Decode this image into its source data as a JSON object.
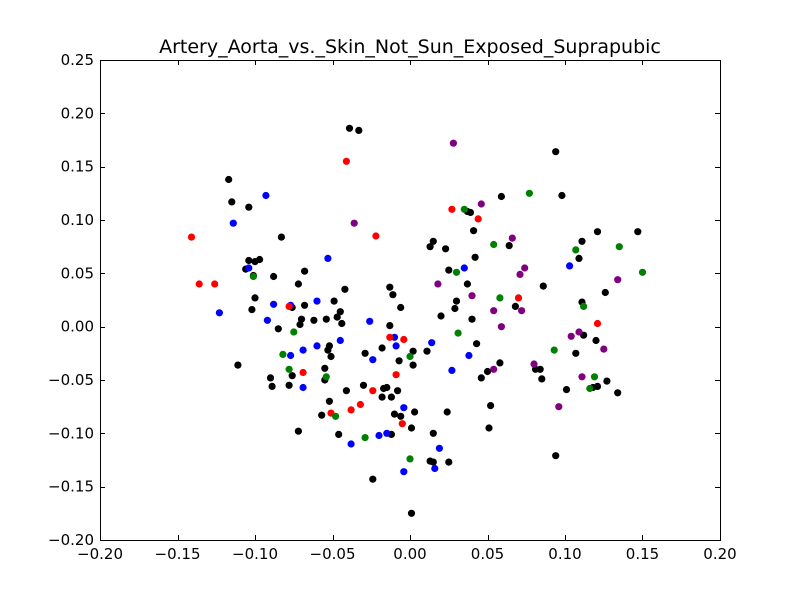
{
  "chart_data": {
    "type": "scatter",
    "title": "Artery_Aorta_vs._Skin_Not_Sun_Exposed_Suprapubic",
    "xlabel": "",
    "ylabel": "",
    "xlim": [
      -0.2,
      0.2
    ],
    "ylim": [
      -0.2,
      0.25
    ],
    "grid": false,
    "x_ticks": [
      "−0.20",
      "−0.15",
      "−0.10",
      "−0.05",
      "0.00",
      "0.05",
      "0.10",
      "0.15",
      "0.20"
    ],
    "x_tick_values": [
      -0.2,
      -0.15,
      -0.1,
      -0.05,
      0.0,
      0.05,
      0.1,
      0.15,
      0.2
    ],
    "y_ticks": [
      "0.25",
      "0.20",
      "0.15",
      "0.10",
      "0.05",
      "0.00",
      "−0.05",
      "−0.10",
      "−0.15",
      "−0.20"
    ],
    "y_tick_values": [
      0.25,
      0.2,
      0.15,
      0.1,
      0.05,
      0.0,
      -0.05,
      -0.1,
      -0.15,
      -0.2
    ],
    "series": [
      {
        "color": "#000000",
        "points": [
          [
            -0.117,
            0.138
          ],
          [
            -0.115,
            0.117
          ],
          [
            -0.104,
            0.112
          ],
          [
            -0.104,
            0.062
          ],
          [
            -0.1,
            0.061
          ],
          [
            -0.097,
            0.063
          ],
          [
            -0.106,
            0.054
          ],
          [
            -0.101,
            0.048
          ],
          [
            -0.1,
            0.027
          ],
          [
            -0.102,
            0.016
          ],
          [
            -0.083,
            0.084
          ],
          [
            -0.088,
            0.047
          ],
          [
            -0.072,
            0.04
          ],
          [
            -0.068,
            0.052
          ],
          [
            -0.068,
            0.02
          ],
          [
            -0.076,
            0.018
          ],
          [
            -0.07,
            0.007
          ],
          [
            -0.071,
            0.002
          ],
          [
            -0.085,
            -0.002
          ],
          [
            -0.062,
            0.006
          ],
          [
            -0.049,
            0.024
          ],
          [
            -0.054,
            0.007
          ],
          [
            -0.047,
            0.009
          ],
          [
            -0.045,
            0.014
          ],
          [
            -0.042,
            0.035
          ],
          [
            -0.044,
            0.003
          ],
          [
            -0.052,
            -0.018
          ],
          [
            -0.053,
            -0.022
          ],
          [
            -0.051,
            -0.028
          ],
          [
            -0.055,
            -0.039
          ],
          [
            -0.055,
            -0.05
          ],
          [
            -0.052,
            -0.07
          ],
          [
            -0.057,
            -0.083
          ],
          [
            -0.046,
            -0.101
          ],
          [
            -0.072,
            -0.098
          ],
          [
            -0.09,
            -0.048
          ],
          [
            -0.089,
            -0.056
          ],
          [
            -0.076,
            -0.046
          ],
          [
            -0.078,
            -0.055
          ],
          [
            -0.111,
            -0.036
          ],
          [
            -0.041,
            -0.06
          ],
          [
            -0.039,
            0.186
          ],
          [
            -0.033,
            0.184
          ],
          [
            -0.03,
            -0.055
          ],
          [
            -0.029,
            -0.025
          ],
          [
            -0.018,
            -0.02
          ],
          [
            -0.017,
            -0.058
          ],
          [
            -0.018,
            -0.066
          ],
          [
            -0.015,
            -0.057
          ],
          [
            -0.012,
            -0.066
          ],
          [
            -0.008,
            -0.06
          ],
          [
            -0.01,
            -0.082
          ],
          [
            -0.006,
            -0.084
          ],
          [
            -0.012,
            -0.101
          ],
          [
            -0.024,
            -0.143
          ],
          [
            -0.013,
            0.037
          ],
          [
            -0.011,
            0.03
          ],
          [
            -0.006,
            0.018
          ],
          [
            -0.013,
            0.001
          ],
          [
            -0.007,
            -0.032
          ],
          [
            0.003,
            -0.08
          ],
          [
            0.001,
            -0.095
          ],
          [
            0.002,
            -0.023
          ],
          [
            0.002,
            -0.036
          ],
          [
            0.001,
            -0.175
          ],
          [
            0.013,
            0.075
          ],
          [
            0.015,
            0.08
          ],
          [
            0.011,
            -0.023
          ],
          [
            0.013,
            -0.126
          ],
          [
            0.015,
            -0.1
          ],
          [
            0.015,
            -0.127
          ],
          [
            0.023,
            0.073
          ],
          [
            0.025,
            0.053
          ],
          [
            0.029,
            0.017
          ],
          [
            0.03,
            0.024
          ],
          [
            0.02,
            0.01
          ],
          [
            0.024,
            -0.08
          ],
          [
            0.025,
            -0.127
          ],
          [
            0.037,
            0.108
          ],
          [
            0.039,
            0.107
          ],
          [
            0.041,
            0.09
          ],
          [
            0.042,
            0.065
          ],
          [
            0.037,
            0.04
          ],
          [
            0.04,
            0.007
          ],
          [
            0.043,
            -0.016
          ],
          [
            0.046,
            -0.048
          ],
          [
            0.05,
            -0.042
          ],
          [
            0.051,
            -0.095
          ],
          [
            0.052,
            -0.074
          ],
          [
            0.059,
            0.122
          ],
          [
            0.064,
            0.076
          ],
          [
            0.068,
            0.019
          ],
          [
            0.058,
            -0.034
          ],
          [
            0.086,
            0.038
          ],
          [
            0.081,
            -0.04
          ],
          [
            0.084,
            -0.04
          ],
          [
            0.085,
            -0.049
          ],
          [
            0.094,
            0.164
          ],
          [
            0.098,
            0.123
          ],
          [
            0.094,
            -0.121
          ],
          [
            0.101,
            -0.059
          ],
          [
            0.109,
            0.064
          ],
          [
            0.111,
            0.08
          ],
          [
            0.111,
            0.023
          ],
          [
            0.121,
            0.089
          ],
          [
            0.107,
            -0.025
          ],
          [
            0.112,
            -0.008
          ],
          [
            0.118,
            -0.057
          ],
          [
            0.12,
            -0.013
          ],
          [
            0.121,
            -0.056
          ],
          [
            0.126,
            0.032
          ],
          [
            0.127,
            -0.051
          ],
          [
            0.134,
            -0.062
          ],
          [
            0.147,
            0.089
          ]
        ]
      },
      {
        "color": "#0000ff",
        "points": [
          [
            -0.093,
            0.123
          ],
          [
            -0.114,
            0.097
          ],
          [
            -0.104,
            0.055
          ],
          [
            -0.123,
            0.013
          ],
          [
            -0.088,
            0.021
          ],
          [
            -0.092,
            0.006
          ],
          [
            -0.077,
            0.02
          ],
          [
            -0.077,
            -0.027
          ],
          [
            -0.069,
            -0.022
          ],
          [
            -0.069,
            -0.057
          ],
          [
            -0.06,
            0.024
          ],
          [
            -0.06,
            -0.018
          ],
          [
            -0.053,
            0.064
          ],
          [
            -0.045,
            -0.013
          ],
          [
            -0.038,
            -0.11
          ],
          [
            -0.026,
            0.005
          ],
          [
            -0.024,
            -0.031
          ],
          [
            -0.02,
            -0.102
          ],
          [
            -0.015,
            -0.1
          ],
          [
            -0.01,
            -0.01
          ],
          [
            -0.009,
            -0.018
          ],
          [
            -0.004,
            -0.076
          ],
          [
            -0.004,
            -0.136
          ],
          [
            0.014,
            -0.015
          ],
          [
            0.016,
            -0.133
          ],
          [
            0.019,
            -0.114
          ],
          [
            0.027,
            -0.041
          ],
          [
            0.035,
            0.055
          ],
          [
            0.038,
            -0.027
          ],
          [
            0.103,
            0.057
          ]
        ]
      },
      {
        "color": "#ff0000",
        "points": [
          [
            -0.141,
            0.084
          ],
          [
            -0.136,
            0.04
          ],
          [
            -0.126,
            0.04
          ],
          [
            -0.078,
            0.019
          ],
          [
            -0.069,
            -0.043
          ],
          [
            -0.041,
            0.155
          ],
          [
            -0.038,
            -0.078
          ],
          [
            -0.032,
            -0.073
          ],
          [
            -0.024,
            -0.06
          ],
          [
            -0.022,
            0.085
          ],
          [
            -0.051,
            -0.081
          ],
          [
            -0.013,
            -0.01
          ],
          [
            -0.009,
            -0.045
          ],
          [
            -0.005,
            -0.091
          ],
          [
            -0.004,
            -0.012
          ],
          [
            0.027,
            0.11
          ],
          [
            0.044,
            0.101
          ],
          [
            0.07,
            0.027
          ],
          [
            0.121,
            0.003
          ]
        ]
      },
      {
        "color": "#008000",
        "points": [
          [
            -0.101,
            0.047
          ],
          [
            -0.075,
            -0.005
          ],
          [
            -0.082,
            -0.026
          ],
          [
            -0.078,
            -0.04
          ],
          [
            -0.054,
            -0.047
          ],
          [
            -0.048,
            -0.084
          ],
          [
            -0.029,
            -0.104
          ],
          [
            0.0,
            -0.028
          ],
          [
            0.0,
            -0.124
          ],
          [
            0.03,
            0.051
          ],
          [
            0.031,
            -0.006
          ],
          [
            0.035,
            0.11
          ],
          [
            0.054,
            0.077
          ],
          [
            0.058,
            0.027
          ],
          [
            0.077,
            0.125
          ],
          [
            0.093,
            -0.022
          ],
          [
            0.107,
            0.072
          ],
          [
            0.112,
            0.019
          ],
          [
            0.116,
            -0.058
          ],
          [
            0.119,
            -0.047
          ],
          [
            0.135,
            0.075
          ],
          [
            0.15,
            0.051
          ]
        ]
      },
      {
        "color": "#800080",
        "points": [
          [
            0.028,
            0.172
          ],
          [
            -0.036,
            0.097
          ],
          [
            0.018,
            0.04
          ],
          [
            0.04,
            0.029
          ],
          [
            0.046,
            0.115
          ],
          [
            0.054,
            0.015
          ],
          [
            0.054,
            -0.04
          ],
          [
            0.059,
            0.0
          ],
          [
            0.066,
            0.083
          ],
          [
            0.071,
            0.049
          ],
          [
            0.072,
            0.015
          ],
          [
            0.074,
            0.055
          ],
          [
            0.08,
            -0.035
          ],
          [
            0.096,
            -0.075
          ],
          [
            0.104,
            -0.009
          ],
          [
            0.109,
            -0.005
          ],
          [
            0.111,
            -0.047
          ],
          [
            0.125,
            -0.021
          ],
          [
            0.134,
            0.044
          ]
        ]
      }
    ]
  }
}
